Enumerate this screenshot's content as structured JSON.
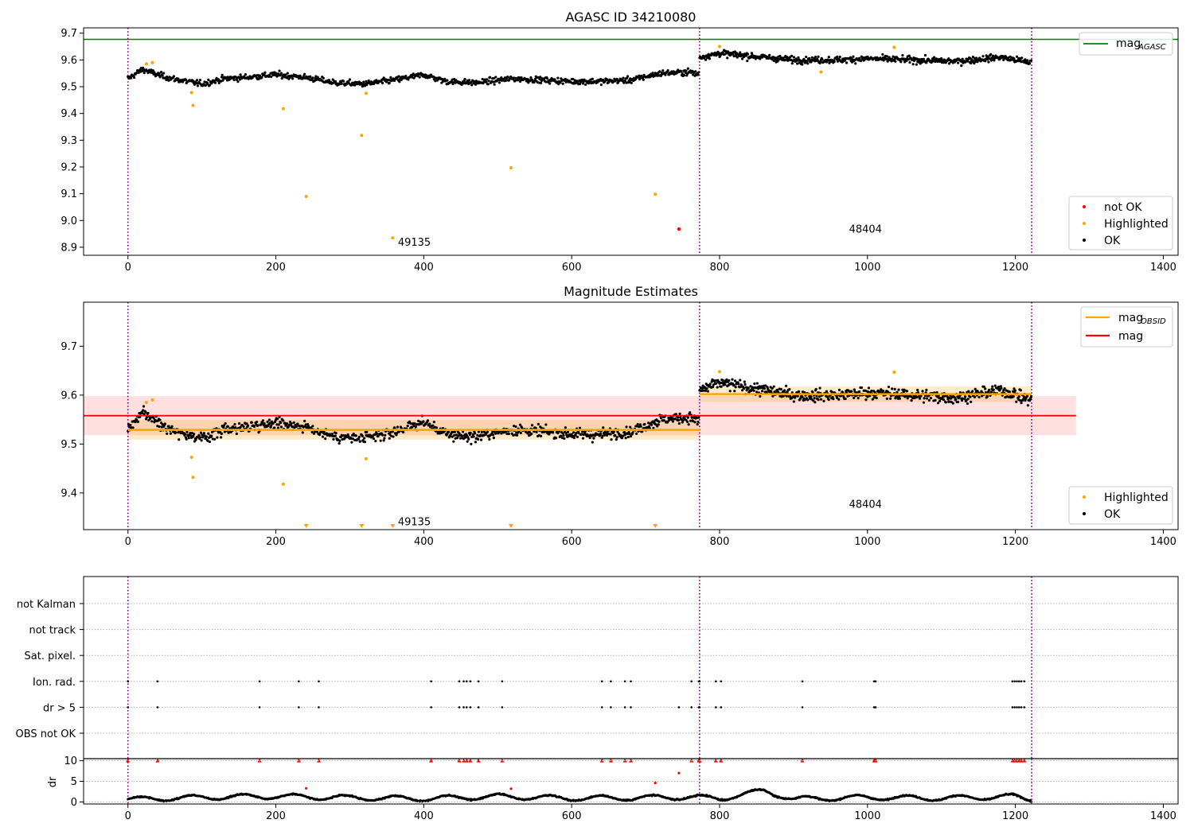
{
  "chart_data": [
    {
      "type": "scatter",
      "title": "AGASC ID 34210080",
      "xlim": [
        -60,
        1420
      ],
      "ylim": [
        8.87,
        9.72
      ],
      "xticks": [
        0,
        200,
        400,
        600,
        800,
        1000,
        1200,
        1400
      ],
      "yticks": [
        8.9,
        9.0,
        9.1,
        9.2,
        9.3,
        9.4,
        9.5,
        9.6,
        9.7
      ],
      "boundaries": [
        0,
        773,
        1222
      ],
      "agasc_mag": 9.677,
      "annotations": [
        {
          "text": "49135",
          "x": 365,
          "y": 8.905
        },
        {
          "text": "48404",
          "x": 975,
          "y": 8.955
        }
      ],
      "legend_lines": [
        {
          "label": "mag",
          "sub": "AGASC",
          "color": "#008000"
        }
      ],
      "legend_points": [
        {
          "label": "not OK",
          "color": "#ff0000"
        },
        {
          "label": "Highlighted",
          "color": "#ffa500"
        },
        {
          "label": "OK",
          "color": "#000000"
        }
      ],
      "ok_profile": {
        "x": [
          0,
          20,
          40,
          60,
          80,
          100,
          130,
          160,
          200,
          240,
          280,
          320,
          360,
          400,
          430,
          470,
          520,
          560,
          600,
          640,
          680,
          720,
          760,
          773
        ],
        "y": [
          9.53,
          9.565,
          9.545,
          9.53,
          9.52,
          9.51,
          9.53,
          9.535,
          9.545,
          9.535,
          9.515,
          9.51,
          9.525,
          9.545,
          9.52,
          9.515,
          9.53,
          9.525,
          9.52,
          9.52,
          9.525,
          9.55,
          9.555,
          9.545
        ]
      },
      "highlighted": [
        {
          "x": 25,
          "y": 9.585
        },
        {
          "x": 33,
          "y": 9.59
        },
        {
          "x": 86,
          "y": 9.478
        },
        {
          "x": 88,
          "y": 9.43
        },
        {
          "x": 210,
          "y": 9.418
        },
        {
          "x": 241,
          "y": 9.09
        },
        {
          "x": 316,
          "y": 9.318
        },
        {
          "x": 322,
          "y": 9.475
        },
        {
          "x": 358,
          "y": 8.935
        },
        {
          "x": 518,
          "y": 9.197
        },
        {
          "x": 713,
          "y": 9.098
        },
        {
          "x": 800,
          "y": 9.65
        },
        {
          "x": 937,
          "y": 9.555
        },
        {
          "x": 1036,
          "y": 9.647
        }
      ],
      "not_ok": [
        {
          "x": 745,
          "y": 8.968
        }
      ]
    },
    {
      "type": "scatter",
      "title": "Magnitude Estimates",
      "xlim": [
        -60,
        1420
      ],
      "ylim": [
        9.325,
        9.79
      ],
      "xticks": [
        0,
        200,
        400,
        600,
        800,
        1000,
        1200,
        1400
      ],
      "yticks": [
        9.4,
        9.5,
        9.6,
        9.7
      ],
      "boundaries": [
        0,
        773,
        1222
      ],
      "mag": 9.558,
      "mag_band": [
        9.518,
        9.598
      ],
      "mag_line_x": [
        -60,
        1282
      ],
      "mag_obsid": [
        {
          "x0": 0,
          "x1": 773,
          "y": 9.529,
          "band": [
            9.509,
            9.549
          ]
        },
        {
          "x0": 773,
          "x1": 1222,
          "y": 9.602,
          "band": [
            9.586,
            9.618
          ]
        }
      ],
      "annotations": [
        {
          "text": "49135",
          "x": 365,
          "y": 9.334
        },
        {
          "text": "48404",
          "x": 975,
          "y": 9.37
        }
      ],
      "legend_lines": [
        {
          "label": "mag",
          "sub": "OBSID",
          "color": "#ffa500"
        },
        {
          "label": "mag",
          "sub": "",
          "color": "#ff0000"
        }
      ],
      "legend_points": [
        {
          "label": "Highlighted",
          "color": "#ffa500"
        },
        {
          "label": "OK",
          "color": "#000000"
        }
      ],
      "highlighted": [
        {
          "x": 25,
          "y": 9.585
        },
        {
          "x": 33,
          "y": 9.59
        },
        {
          "x": 86,
          "y": 9.473
        },
        {
          "x": 88,
          "y": 9.432
        },
        {
          "x": 210,
          "y": 9.418
        },
        {
          "x": 322,
          "y": 9.47
        },
        {
          "x": 800,
          "y": 9.648
        },
        {
          "x": 1036,
          "y": 9.647
        }
      ],
      "off_scale": [
        241,
        316,
        358,
        518,
        713
      ]
    },
    {
      "type": "scatter",
      "title": "",
      "xlim": [
        -60,
        1420
      ],
      "xticks": [
        0,
        200,
        400,
        600,
        800,
        1000,
        1200,
        1400
      ],
      "boundaries": [
        0,
        773,
        1222
      ],
      "flag_categories": [
        "not Kalman",
        "not track",
        "Sat. pixel.",
        "Ion. rad.",
        "dr > 5",
        "OBS not OK"
      ],
      "flags": [
        {
          "category": "Ion. rad.",
          "x": [
            0,
            40,
            178,
            231,
            258,
            410,
            448,
            454,
            458,
            463,
            474,
            506,
            641,
            653,
            672,
            680,
            762,
            772,
            773,
            795,
            802,
            912,
            1009,
            1011,
            1196,
            1199,
            1202,
            1205,
            1208,
            1212
          ]
        },
        {
          "category": "dr > 5",
          "x": [
            0,
            40,
            178,
            231,
            258,
            410,
            448,
            454,
            458,
            463,
            474,
            506,
            641,
            653,
            672,
            680,
            745,
            762,
            772,
            773,
            795,
            802,
            912,
            1009,
            1011,
            1196,
            1199,
            1202,
            1205,
            1208,
            1212
          ]
        }
      ]
    },
    {
      "type": "scatter",
      "title": "",
      "ylabel": "dr",
      "xlim": [
        -60,
        1420
      ],
      "ylim": [
        -0.5,
        10.5
      ],
      "yticks": [
        0,
        5,
        10
      ],
      "xticks": [
        0,
        200,
        400,
        600,
        800,
        1000,
        1200,
        1400
      ],
      "boundaries": [
        0,
        773,
        1222
      ],
      "clipped_at": 10,
      "clipped_x": [
        0,
        40,
        178,
        231,
        258,
        410,
        448,
        454,
        458,
        463,
        474,
        506,
        641,
        653,
        672,
        680,
        762,
        772,
        773,
        795,
        802,
        912,
        1009,
        1011,
        1196,
        1199,
        1202,
        1205,
        1208,
        1212
      ],
      "outliers": [
        {
          "x": 241,
          "y": 3.3
        },
        {
          "x": 518,
          "y": 3.2
        },
        {
          "x": 713,
          "y": 4.6
        },
        {
          "x": 745,
          "y": 7.0
        }
      ],
      "ok_profile": {
        "x": [
          0,
          100,
          200,
          300,
          400,
          500,
          600,
          700,
          760,
          800,
          860,
          900,
          1000,
          1100,
          1200,
          1222
        ],
        "y": [
          0.6,
          1.1,
          1.4,
          1.0,
          0.8,
          1.3,
          0.9,
          1.0,
          1.2,
          0.8,
          2.7,
          0.7,
          1.1,
          0.9,
          1.3,
          0.6
        ]
      }
    }
  ]
}
